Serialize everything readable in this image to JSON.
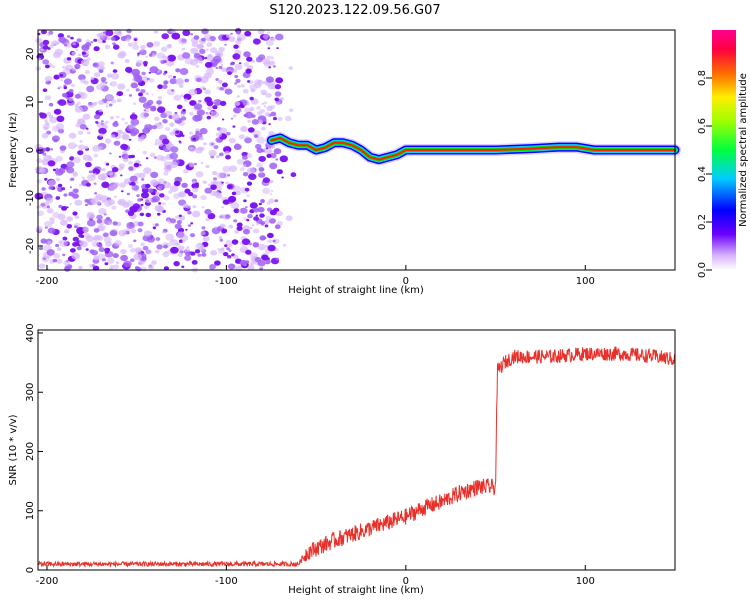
{
  "figure": {
    "title": "S120.2023.122.09.56.G07"
  },
  "colors": {
    "snr_line": "#e8302a",
    "noise": "#8a2be2",
    "ridge_outer": "#0000ff",
    "ridge_mid": "#00e000",
    "ridge_inner": "#ff2000"
  },
  "chart_data": [
    {
      "type": "heatmap",
      "name": "spectrogram",
      "title": "",
      "xlabel": "Height of straight line (km)",
      "ylabel": "Frequency (Hz)",
      "xlim": [
        -205,
        150
      ],
      "ylim": [
        -25,
        25
      ],
      "xticks": [
        -200,
        -100,
        0,
        100
      ],
      "yticks": [
        -20,
        -10,
        0,
        10,
        20
      ],
      "noise_region_x": [
        -205,
        -70
      ],
      "ridge": {
        "x": [
          -75,
          -70,
          -65,
          -60,
          -55,
          -50,
          -45,
          -40,
          -35,
          -30,
          -25,
          -20,
          -15,
          -10,
          -5,
          0,
          10,
          30,
          50,
          70,
          85,
          95,
          105,
          120,
          150
        ],
        "y": [
          2,
          2.5,
          1.5,
          1,
          1,
          0,
          0.5,
          1.5,
          1.5,
          1,
          0,
          -1.5,
          -2,
          -1.5,
          -1,
          0,
          0,
          0,
          0,
          0.3,
          0.6,
          0.6,
          0,
          0,
          0
        ]
      },
      "colorbar": {
        "label": "Normalized spectral amplitude",
        "range": [
          0.0,
          1.0
        ],
        "ticks": [
          0.0,
          0.2,
          0.4,
          0.6,
          0.8
        ],
        "tick_labels": [
          "0.0",
          "0.2",
          "0.4",
          "0.6",
          "0.8"
        ]
      }
    },
    {
      "type": "line",
      "name": "snr",
      "title": "",
      "xlabel": "Height of straight line (km)",
      "ylabel": "SNR (10 * v/v)",
      "xlim": [
        -205,
        150
      ],
      "ylim": [
        0,
        405
      ],
      "xticks": [
        -200,
        -100,
        0,
        100
      ],
      "yticks": [
        0,
        100,
        200,
        300,
        400
      ],
      "series": [
        {
          "x": [
            -205,
            -100,
            -60,
            -55,
            -40,
            -20,
            0,
            10,
            20,
            30,
            40,
            50,
            51,
            55,
            60,
            80,
            100,
            120,
            140,
            150
          ],
          "y": [
            10,
            10,
            10,
            30,
            50,
            70,
            90,
            105,
            115,
            130,
            140,
            140,
            335,
            350,
            360,
            360,
            365,
            365,
            360,
            355
          ]
        }
      ]
    }
  ]
}
